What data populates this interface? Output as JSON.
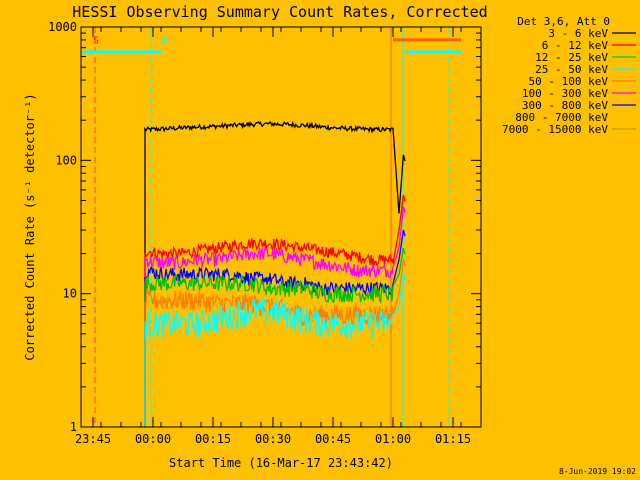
{
  "chart_data": {
    "type": "line",
    "title": "HESSI Observing Summary Count Rates, Corrected",
    "xlabel": "Start Time (16-Mar-17 23:43:42)",
    "ylabel": "Corrected Count Rate (s⁻¹ detector⁻¹)",
    "yscale": "log",
    "ylim": [
      1,
      1000
    ],
    "xlim": [
      "23:42",
      "01:22"
    ],
    "x_ticks": [
      "23:45",
      "00:00",
      "00:15",
      "00:30",
      "00:45",
      "01:00",
      "01:15"
    ],
    "y_ticks": [
      "1",
      "10",
      "100",
      "1000"
    ],
    "grid": false,
    "legend": {
      "placement": "top-right",
      "title": "Det 3,6, Att 0",
      "entries": [
        {
          "label": "3 - 6 keV",
          "color": "#000000"
        },
        {
          "label": "6 - 12 keV",
          "color": "#ff0000"
        },
        {
          "label": "12 - 25 keV",
          "color": "#00c000"
        },
        {
          "label": "25 - 50 keV",
          "color": "#00ffff"
        },
        {
          "label": "50 - 100 keV",
          "color": "#ff8000"
        },
        {
          "label": "100 - 300 keV",
          "color": "#ff00ff"
        },
        {
          "label": "300 - 800 keV",
          "color": "#0000ff"
        },
        {
          "label": "800 - 7000 keV",
          "color": "#ffc000"
        },
        {
          "label": "7000 - 15000 keV",
          "color": "#c8a000"
        }
      ]
    },
    "annotations": [
      {
        "text": "S",
        "x": "23:44",
        "color": "#ff0000"
      },
      {
        "text": "N",
        "x": "00:01",
        "color": "#00ffff"
      }
    ],
    "time_markers": [
      {
        "time": "23:45.5",
        "color": "#ff4040",
        "style": "dashed"
      },
      {
        "time": "23:59.5",
        "color": "#00ffff",
        "style": "dashed"
      },
      {
        "time": "00:59.5",
        "color": "#ff6000",
        "style": "solid"
      },
      {
        "time": "01:02.5",
        "color": "#00ffff",
        "style": "solid"
      },
      {
        "time": "01:14",
        "color": "#00ffff",
        "style": "dashed"
      }
    ],
    "status_bars": [
      {
        "from": "23:42",
        "to": "23:62",
        "y": 650,
        "color": "#00ffff"
      },
      {
        "from": "00:60",
        "to": "01:17",
        "y": 800,
        "color": "#ff6000"
      },
      {
        "from": "01:03",
        "to": "01:17",
        "y": 650,
        "color": "#00ffff"
      }
    ],
    "series": [
      {
        "name": "3 - 6 keV",
        "color": "#000000",
        "x_start": "23:58",
        "x_end": "01:03",
        "values": [
          170,
          172,
          175,
          178,
          180,
          183,
          186,
          188,
          186,
          183,
          178,
          174,
          172,
          170,
          170
        ],
        "jitter": 0.02,
        "end_values": [
          40,
          110
        ]
      },
      {
        "name": "6 - 12 keV",
        "color": "#ff0000",
        "x_start": "23:58",
        "x_end": "01:03",
        "values": [
          21,
          20,
          20,
          21,
          22,
          23,
          24,
          24,
          23,
          22,
          21,
          20,
          19,
          18,
          18
        ],
        "jitter": 0.05,
        "end_values": [
          30,
          55
        ]
      },
      {
        "name": "100 - 300 keV",
        "color": "#ff00ff",
        "x_start": "23:58",
        "x_end": "01:03",
        "values": [
          18,
          17,
          17,
          18,
          18,
          19,
          20,
          20,
          19,
          18,
          17,
          16,
          15,
          15,
          15
        ],
        "jitter": 0.06,
        "end_values": [
          22,
          45
        ]
      },
      {
        "name": "300 - 800 keV",
        "color": "#0000ff",
        "x_start": "23:58",
        "x_end": "01:03",
        "values": [
          15,
          14,
          14,
          14,
          14,
          14,
          13,
          13,
          12,
          12,
          11,
          11,
          11,
          11,
          11
        ],
        "jitter": 0.06,
        "end_values": [
          18,
          30
        ]
      },
      {
        "name": "12 - 25 keV",
        "color": "#00c000",
        "x_start": "23:58",
        "x_end": "01:03",
        "values": [
          12,
          12,
          12,
          12,
          12,
          12,
          12,
          11,
          11,
          11,
          10,
          10,
          10,
          10,
          10
        ],
        "jitter": 0.07,
        "end_values": [
          14,
          22
        ]
      },
      {
        "name": "50 - 100 keV",
        "color": "#ff8000",
        "x_start": "23:58",
        "x_end": "01:03",
        "values": [
          9,
          9,
          9,
          9,
          8.5,
          8.5,
          8.5,
          8,
          7.5,
          7,
          7,
          7,
          7,
          7,
          7
        ],
        "jitter": 0.09,
        "end_values": [
          10,
          18
        ]
      },
      {
        "name": "25 - 50 keV",
        "color": "#00ffff",
        "x_start": "23:58",
        "x_end": "01:03",
        "values": [
          6,
          6,
          6,
          6,
          6.5,
          7,
          7.5,
          7.5,
          7,
          6.5,
          6,
          6,
          6,
          6,
          6
        ],
        "jitter": 0.12,
        "end_values": [
          8,
          14
        ]
      }
    ]
  },
  "footer": {
    "timestamp": "8-Jun-2019 19:02"
  }
}
